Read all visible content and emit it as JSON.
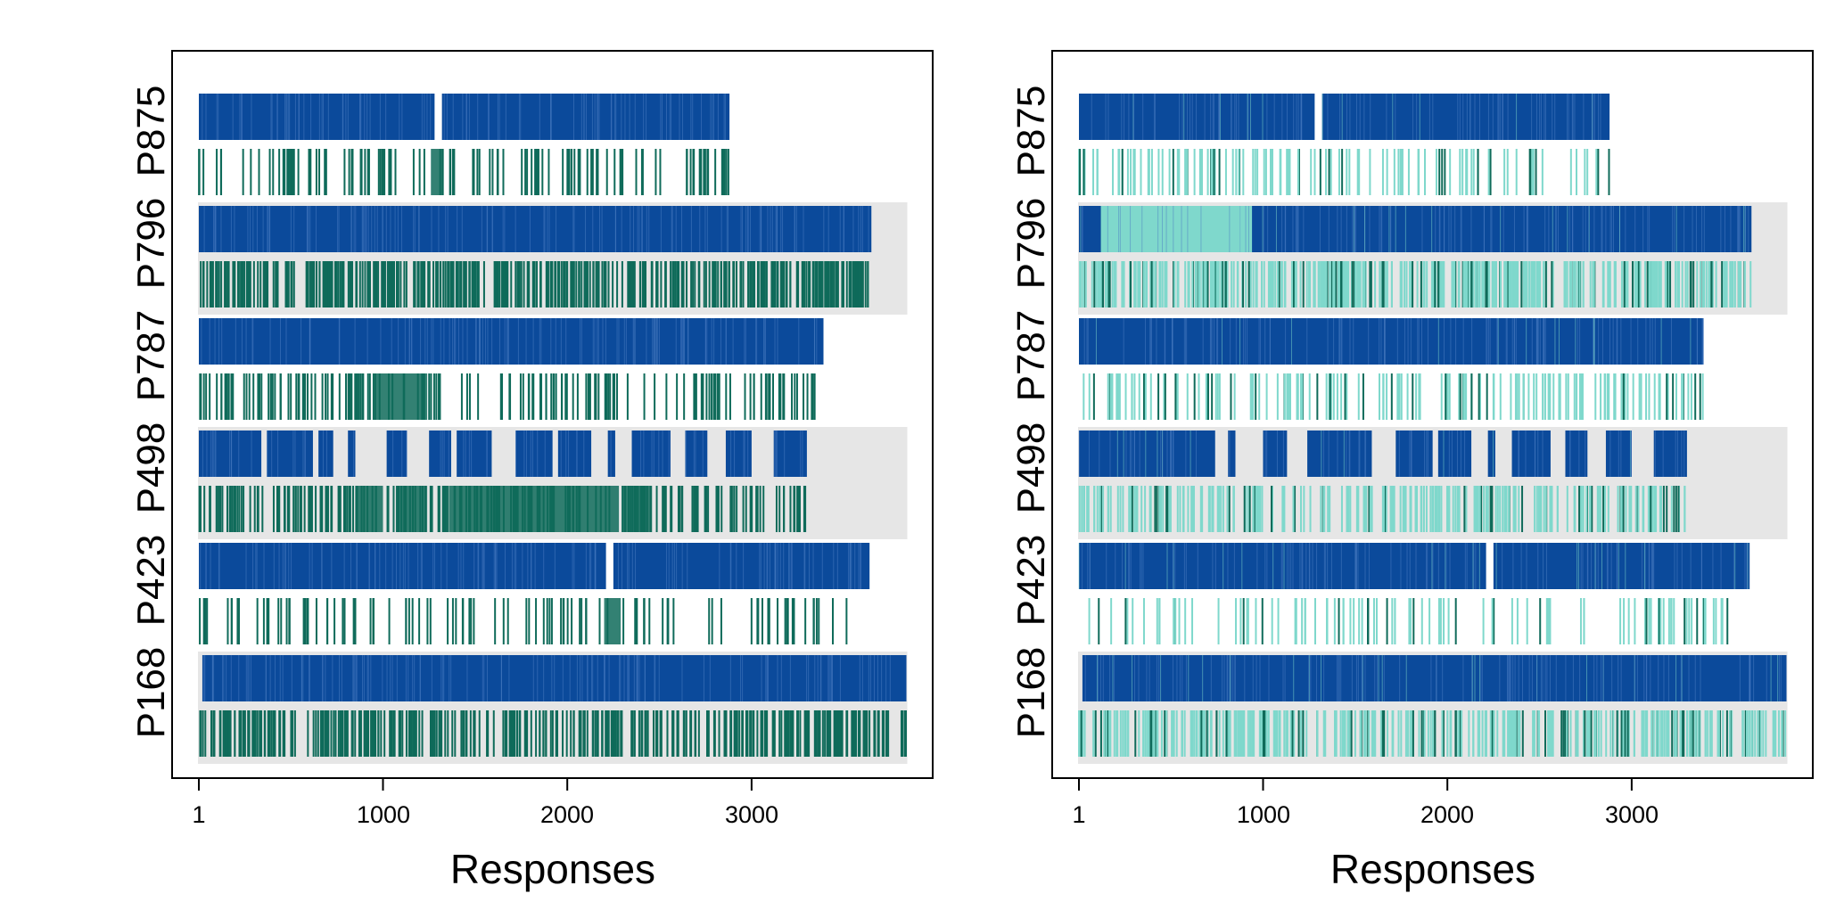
{
  "chart_data": [
    {
      "type": "barcode",
      "panel": "left",
      "xlabel": "Responses",
      "x_ticks": [
        1,
        1000,
        2000,
        3000
      ],
      "x_range": [
        1,
        3850
      ],
      "participants": [
        "P875",
        "P796",
        "P787",
        "P498",
        "P423",
        "P168"
      ],
      "shaded_rows": [
        "P796",
        "P498",
        "P168"
      ],
      "row_ends": {
        "P875": 2880,
        "P796": 3650,
        "P787": 3390,
        "P498": 3300,
        "P423": 3640,
        "P168": 3840
      },
      "top_track": {
        "color": "#0b4a9b",
        "segments": {
          "P875": [
            [
              1,
              1280
            ],
            [
              1320,
              2880
            ]
          ],
          "P796": [
            [
              1,
              3650
            ]
          ],
          "P787": [
            [
              1,
              3390
            ]
          ],
          "P498": [
            [
              1,
              340
            ],
            [
              370,
              620
            ],
            [
              650,
              730
            ],
            [
              810,
              850
            ],
            [
              1020,
              1130
            ],
            [
              1250,
              1370
            ],
            [
              1400,
              1590
            ],
            [
              1720,
              1920
            ],
            [
              1950,
              2130
            ],
            [
              2220,
              2260
            ],
            [
              2350,
              2560
            ],
            [
              2640,
              2760
            ],
            [
              2860,
              3000
            ],
            [
              3120,
              3300
            ]
          ],
          "P423": [
            [
              1,
              2210
            ],
            [
              2250,
              3640
            ]
          ],
          "P168": [
            [
              20,
              3840
            ]
          ]
        }
      },
      "bottom_track": {
        "color": "#0f6b5a",
        "segments": {
          "P875": [
            [
              1,
              2880
            ]
          ],
          "P796": [
            [
              1,
              3650
            ]
          ],
          "P787": [
            [
              1,
              3390
            ]
          ],
          "P498": [
            [
              1,
              3300
            ]
          ],
          "P423": [
            [
              1,
              3520
            ]
          ],
          "P168": [
            [
              1,
              3840
            ]
          ]
        },
        "dense_blocks": {
          "P875": [
            [
              1260,
              1330
            ]
          ],
          "P787": [
            [
              960,
              1240
            ]
          ],
          "P498": [
            [
              850,
              1000
            ],
            [
              1070,
              1240
            ],
            [
              1360,
              2280
            ],
            [
              2300,
              2460
            ]
          ],
          "P423": [
            [
              2200,
              2290
            ]
          ]
        }
      }
    },
    {
      "type": "barcode",
      "panel": "right",
      "xlabel": "Responses",
      "x_ticks": [
        1,
        1000,
        2000,
        3000
      ],
      "x_range": [
        1,
        3850
      ],
      "participants": [
        "P875",
        "P796",
        "P787",
        "P498",
        "P423",
        "P168"
      ],
      "shaded_rows": [
        "P796",
        "P498",
        "P168"
      ],
      "row_ends": {
        "P875": 2880,
        "P796": 3650,
        "P787": 3390,
        "P498": 3300,
        "P423": 3640,
        "P168": 3840
      },
      "top_track": {
        "color": "#0b4a9b",
        "light_color": "#7fd8cc",
        "segments": {
          "P875": [
            [
              1,
              1280
            ],
            [
              1320,
              2880
            ]
          ],
          "P796": [
            [
              1,
              3650
            ]
          ],
          "P787": [
            [
              1,
              3390
            ]
          ],
          "P498": [
            [
              1,
              740
            ],
            [
              810,
              850
            ],
            [
              1000,
              1130
            ],
            [
              1240,
              1590
            ],
            [
              1720,
              1920
            ],
            [
              1950,
              2130
            ],
            [
              2220,
              2260
            ],
            [
              2350,
              2560
            ],
            [
              2640,
              2760
            ],
            [
              2860,
              3000
            ],
            [
              3120,
              3300
            ]
          ],
          "P423": [
            [
              1,
              2210
            ],
            [
              2250,
              3640
            ]
          ],
          "P168": [
            [
              20,
              3840
            ]
          ]
        },
        "light_blocks": {
          "P796": [
            [
              120,
              940
            ]
          ]
        }
      },
      "bottom_track": {
        "color": "#7fd8cc",
        "dark_color": "#0f6b5a",
        "segments": {
          "P875": [
            [
              1,
              2880
            ]
          ],
          "P796": [
            [
              1,
              3650
            ]
          ],
          "P787": [
            [
              1,
              3390
            ]
          ],
          "P498": [
            [
              1,
              3300
            ]
          ],
          "P423": [
            [
              1,
              3520
            ]
          ],
          "P168": [
            [
              1,
              3840
            ]
          ]
        }
      }
    }
  ],
  "colors": {
    "shade": "#e6e6e6",
    "frame": "#000000"
  }
}
